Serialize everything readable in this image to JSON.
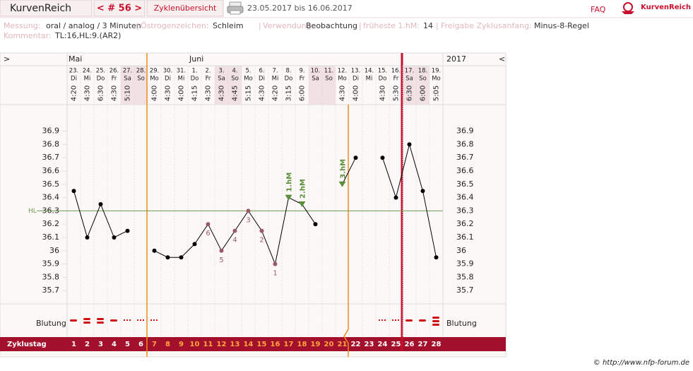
{
  "header": {
    "title": "KurvenReich",
    "cycle_nav": "< # 56 >",
    "overview": "Zyklenübersicht",
    "range": "23.05.2017 bis 16.06.2017",
    "faq": "FAQ",
    "logo": "KurvenReich"
  },
  "info": [
    {
      "label": "Messung:",
      "value": "oral / analog / 3 Minuten"
    },
    {
      "label": "Östrogenzeichen:",
      "value": "Schleim"
    },
    {
      "label": "Verwendung:",
      "value": "Beobachtung"
    },
    {
      "label": "früheste 1.hM:",
      "value": "14"
    },
    {
      "label": "Freigabe Zyklusanfang:",
      "value": "Minus-8-Regel"
    }
  ],
  "comment": {
    "label": "Kommentar:",
    "value": "TL:16,HL:9.(AR2)"
  },
  "chart_data": {
    "type": "line",
    "nav_left": ">",
    "nav_right": "<",
    "months": [
      "Mai",
      "Juni"
    ],
    "year": "2017",
    "dates": [
      "23.",
      "24.",
      "25.",
      "26.",
      "27.",
      "28.",
      "29.",
      "30.",
      "31.",
      "1.",
      "2.",
      "3.",
      "4.",
      "5.",
      "6.",
      "7.",
      "8.",
      "9.",
      "10.",
      "11.",
      "12.",
      "13.",
      "14.",
      "15.",
      "16.",
      "17.",
      "18.",
      "19."
    ],
    "weekdays": [
      "Di",
      "Mi",
      "Do",
      "Fr",
      "Sa",
      "So",
      "Mo",
      "Di",
      "Mi",
      "Do",
      "Fr",
      "Sa",
      "So",
      "Mo",
      "Di",
      "Mi",
      "Do",
      "Fr",
      "Sa",
      "So",
      "Mo",
      "Di",
      "Mi",
      "Do",
      "Fr",
      "Sa",
      "So",
      "Mo"
    ],
    "times": [
      "4:20",
      "4:30",
      "6:30",
      "4:30",
      "5:10",
      null,
      "4:00",
      "4:30",
      "4:00",
      "4:15",
      "4:30",
      "4:30",
      "4:45",
      "5:15",
      "4:30",
      "4:20",
      "3:15",
      "6:00",
      null,
      null,
      "4:30",
      "4:00",
      null,
      "4:30",
      "5:30",
      "6:30",
      "6:00",
      "5:05"
    ],
    "x_label": "Zyklustag",
    "categories": [
      "1",
      "2",
      "3",
      "4",
      "5",
      "6",
      "7",
      "8",
      "9",
      "10",
      "11",
      "12",
      "13",
      "14",
      "15",
      "16",
      "17",
      "18",
      "19",
      "20",
      "21",
      "22",
      "23",
      "24",
      "25",
      "26",
      "27",
      "28"
    ],
    "values": [
      36.45,
      36.1,
      36.35,
      36.1,
      36.15,
      null,
      36.0,
      35.95,
      35.95,
      36.05,
      36.2,
      36.0,
      36.15,
      36.3,
      36.15,
      35.9,
      36.4,
      36.35,
      36.2,
      null,
      36.5,
      36.7,
      null,
      36.7,
      36.4,
      36.8,
      36.45,
      35.95
    ],
    "rank_labels": [
      null,
      null,
      null,
      null,
      null,
      null,
      null,
      null,
      null,
      null,
      "6",
      "5",
      "4",
      "3",
      "2",
      "1",
      null,
      null,
      null,
      null,
      null,
      null,
      null,
      null,
      null,
      null,
      null,
      null
    ],
    "hm_labels": [
      null,
      null,
      null,
      null,
      null,
      null,
      null,
      null,
      null,
      null,
      null,
      null,
      null,
      null,
      null,
      null,
      "1.hM",
      "2.hM",
      null,
      null,
      "3.hM",
      null,
      null,
      null,
      null,
      null,
      null,
      null
    ],
    "color": "#000000",
    "ylim": [
      35.6,
      37.1
    ],
    "yticks": [
      35.7,
      35.8,
      35.9,
      36,
      36.1,
      36.2,
      36.3,
      36.4,
      36.5,
      36.6,
      36.7,
      36.8,
      36.9
    ],
    "hl": {
      "label": "HL",
      "value": 36.3
    },
    "bleeding_label": "Blutung"
  },
  "footer": "© http://www.nfp-forum.de"
}
